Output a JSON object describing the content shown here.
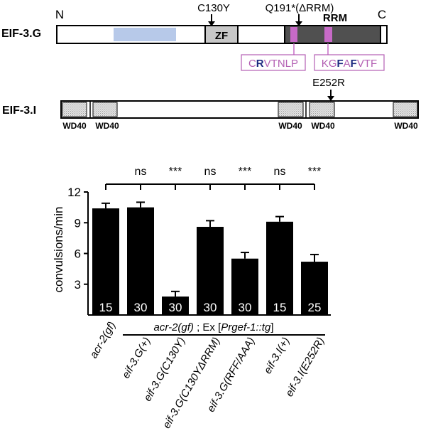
{
  "diagram": {
    "eif3g": {
      "name": "EIF-3.G",
      "n_label": "N",
      "c_label": "C",
      "zf_label": "ZF",
      "rrm_label": "RRM",
      "mutation1": "C130Y",
      "mutation2": "Q191*(ΔRRM)",
      "motif1": {
        "text": "CRVTNLP",
        "bold": [
          1
        ]
      },
      "motif2": {
        "text": "KGFAFVTF",
        "bold": [
          2,
          4
        ]
      }
    },
    "eif3i": {
      "name": "EIF-3.I",
      "mutation": "E252R",
      "wd40_label": "WD40"
    },
    "colors": {
      "light_blue": "#b7c9e9",
      "pink": "#c76ac7",
      "dark_gray": "#505050",
      "zf_gray": "#c8c8c8",
      "motif_text": "#b35fb3",
      "motif_bold": "#1c2a80"
    }
  },
  "chart_data": {
    "type": "bar",
    "ylabel": "convulsions/min",
    "ylim": [
      0,
      12
    ],
    "yticks": [
      "3",
      "6",
      "9",
      "12"
    ],
    "categories": [
      "acr-2(gf)",
      "eif-3.G(+)",
      "eif-3.G(C130Y)",
      "eif-3.G(C130YΔRRM)",
      "eif-3.G(RFF/AAA)",
      "eif-3.I(+)",
      "eif-3.I(E252R)"
    ],
    "values": [
      10.4,
      10.5,
      1.8,
      8.6,
      5.5,
      9.1,
      5.2
    ],
    "errors": [
      0.5,
      0.5,
      0.5,
      0.6,
      0.6,
      0.5,
      0.7
    ],
    "n": [
      "15",
      "30",
      "30",
      "30",
      "30",
      "15",
      "25"
    ],
    "significance": [
      "ns",
      "***",
      "ns",
      "***",
      "ns",
      "***"
    ],
    "group_label": "acr-2(gf) ; Ex [Prgef-1::tg]",
    "bar_color": "#000000"
  }
}
